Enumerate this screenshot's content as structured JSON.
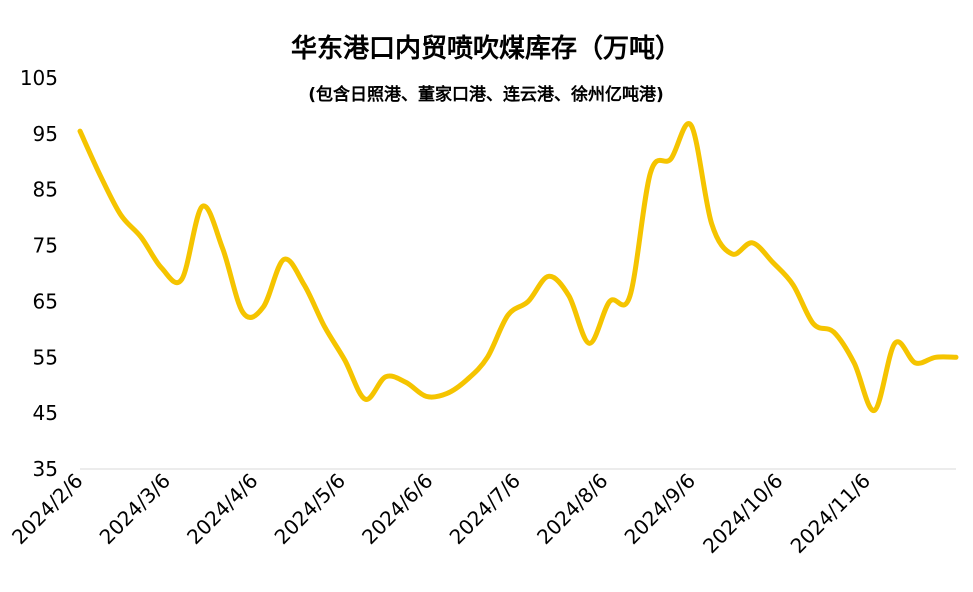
{
  "chart_data": {
    "type": "line",
    "title": "华东港口内贸喷吹煤库存（万吨）",
    "subtitle": "(包含日照港、董家口港、连云港、徐州亿吨港)",
    "xlabel": "",
    "ylabel": "",
    "ylim": [
      35,
      105
    ],
    "yticks": [
      35,
      45,
      55,
      65,
      75,
      85,
      95,
      105
    ],
    "xticks": [
      "2024/2/6",
      "2024/3/6",
      "2024/4/6",
      "2024/5/6",
      "2024/6/6",
      "2024/7/6",
      "2024/8/6",
      "2024/9/6",
      "2024/10/6",
      "2024/11/6"
    ],
    "legend": "none",
    "grid": false,
    "series": [
      {
        "name": "华东港口内贸喷吹煤库存",
        "color": "#f5c400",
        "x": [
          0,
          1,
          2,
          3,
          4,
          5,
          6,
          7,
          8,
          9,
          10,
          11,
          12,
          13,
          14,
          15,
          16,
          17,
          18,
          19,
          20,
          21,
          22,
          23,
          24,
          25,
          26,
          27,
          28,
          29,
          30,
          31,
          32,
          33,
          34,
          35,
          36,
          37,
          38,
          39,
          40,
          41,
          42,
          43
        ],
        "values": [
          95.5,
          87.5,
          80.5,
          76.5,
          71,
          69,
          82,
          74.5,
          63,
          64,
          72.5,
          68,
          60.5,
          54.5,
          47.5,
          51.5,
          50.5,
          48,
          48.5,
          51,
          55,
          62.5,
          65,
          69.5,
          66,
          57.5,
          65,
          66,
          88,
          90.5,
          96.5,
          79,
          73.5,
          75.5,
          72,
          68,
          61,
          59.5,
          54,
          45.5,
          57.5,
          54,
          55,
          55
        ]
      }
    ]
  }
}
